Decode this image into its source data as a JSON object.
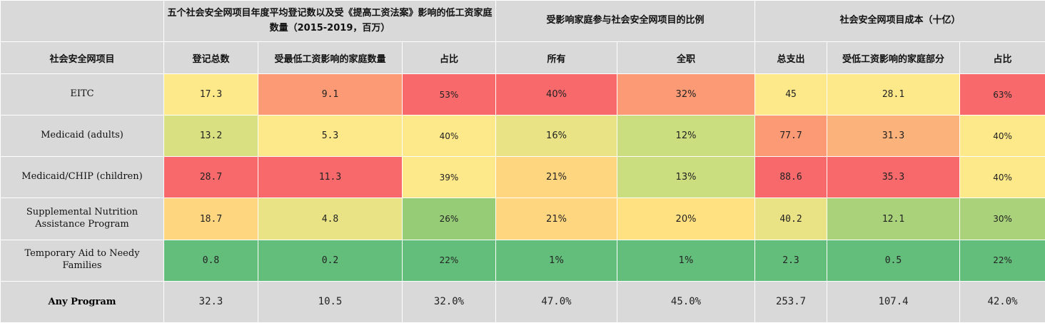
{
  "header": {
    "group1": "五个社会安全网项目年度平均登记数以及受《提高工资法案》影响的低工资家庭数量（2015-2019，百万）",
    "group2": "受影响家庭参与社会安全网项目的比例",
    "group3": "社会安全网项目成本（十亿）",
    "col_program": "社会安全网项目",
    "col_total_enrolled": "登记总数",
    "col_affected_families": "受最低工资影响的家庭数量",
    "col_share1": "占比",
    "col_all": "所有",
    "col_fulltime": "全职",
    "col_total_spend": "总支出",
    "col_affected_portion": "受低工资影响的家庭部分",
    "col_share2": "占比"
  },
  "rows": [
    {
      "program": "EITC",
      "total_enrolled": "17.3",
      "affected_families": "9.1",
      "share1": "53%",
      "all": "40%",
      "fulltime": "32%",
      "total_spend": "45",
      "affected_portion": "28.1",
      "share2": "63%",
      "colors": [
        "#fde88a",
        "#fb9a75",
        "#f8696b",
        "#f8696b",
        "#fb9a75",
        "#fde88a",
        "#fde88a",
        "#f8696b"
      ]
    },
    {
      "program": "Medicaid (adults)",
      "total_enrolled": "13.2",
      "affected_families": "5.3",
      "share1": "40%",
      "all": "16%",
      "fulltime": "12%",
      "total_spend": "77.7",
      "affected_portion": "31.3",
      "share2": "40%",
      "colors": [
        "#d8e082",
        "#fde88a",
        "#fde88a",
        "#eae385",
        "#cadd7f",
        "#fb9a75",
        "#fcb27b",
        "#fde88a"
      ]
    },
    {
      "program": "Medicaid/CHIP (children)",
      "total_enrolled": "28.7",
      "affected_families": "11.3",
      "share1": "39%",
      "all": "21%",
      "fulltime": "13%",
      "total_spend": "88.6",
      "affected_portion": "35.3",
      "share2": "40%",
      "colors": [
        "#f8696b",
        "#f8696b",
        "#fde88a",
        "#ffd680",
        "#cadd7f",
        "#f8696b",
        "#f8696b",
        "#fde88a"
      ]
    },
    {
      "program": "Supplemental Nutrition Assistance Program",
      "total_enrolled": "18.7",
      "affected_families": "4.8",
      "share1": "26%",
      "all": "21%",
      "fulltime": "20%",
      "total_spend": "40.2",
      "affected_portion": "12.1",
      "share2": "30%",
      "colors": [
        "#ffd680",
        "#eae385",
        "#97cc77",
        "#ffd680",
        "#ffe182",
        "#eae385",
        "#a9d27a",
        "#a9d27a"
      ]
    },
    {
      "program": "Temporary Aid to Needy Families",
      "total_enrolled": "0.8",
      "affected_families": "0.2",
      "share1": "22%",
      "all": "1%",
      "fulltime": "1%",
      "total_spend": "2.3",
      "affected_portion": "0.5",
      "share2": "22%",
      "colors": [
        "#63be7b",
        "#63be7b",
        "#63be7b",
        "#63be7b",
        "#63be7b",
        "#63be7b",
        "#63be7b",
        "#63be7b"
      ]
    }
  ],
  "total": {
    "program": "Any Program",
    "total_enrolled": "32.3",
    "affected_families": "10.5",
    "share1": "32.0%",
    "all": "47.0%",
    "fulltime": "45.0%",
    "total_spend": "253.7",
    "affected_portion": "107.4",
    "share2": "42.0%"
  }
}
